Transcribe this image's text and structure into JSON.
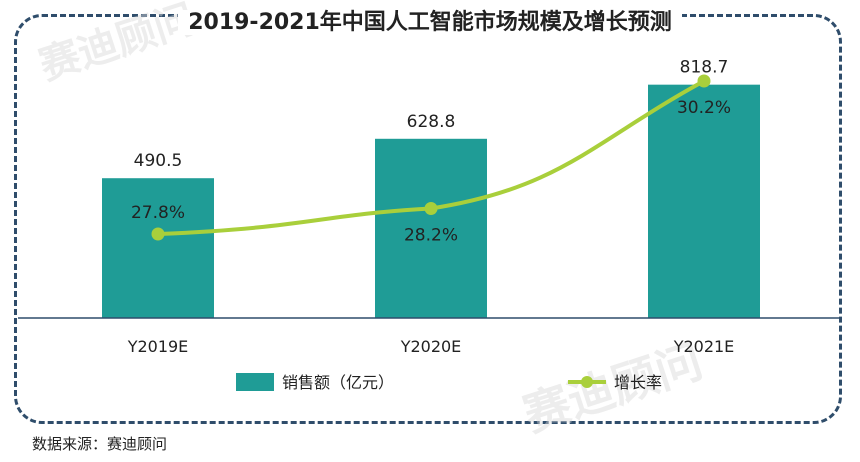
{
  "title": "2019-2021年中国人工智能市场规模及增长预测",
  "source": "数据来源：赛迪顾问",
  "watermark": "赛迪顾问",
  "colors": {
    "bar": "#1f9c96",
    "line": "#a9cf3b",
    "axis": "#2f4d6b",
    "frame": "#2f4d6b"
  },
  "chart_data": {
    "type": "bar",
    "categories": [
      "Y2019E",
      "Y2020E",
      "Y2021E"
    ],
    "series": [
      {
        "name": "销售额（亿元）",
        "type": "bar",
        "values": [
          490.5,
          628.8,
          818.7
        ],
        "labels": [
          "490.5",
          "628.8",
          "818.7"
        ]
      },
      {
        "name": "增长率",
        "type": "line",
        "values": [
          27.8,
          28.2,
          30.2
        ],
        "labels": [
          "27.8%",
          "28.2%",
          "30.2%"
        ]
      }
    ],
    "legend_position": "bottom"
  }
}
